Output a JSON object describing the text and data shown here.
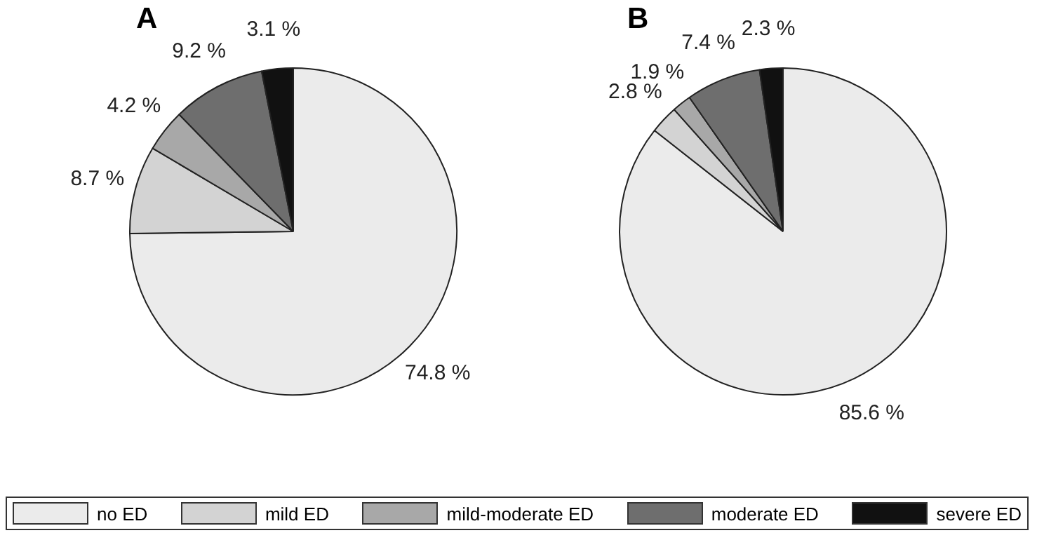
{
  "chart_data": [
    {
      "type": "pie",
      "title": "A",
      "categories": [
        "no ED",
        "mild ED",
        "mild-moderate ED",
        "moderate ED",
        "severe ED"
      ],
      "values": [
        74.8,
        8.7,
        4.2,
        9.2,
        3.1
      ],
      "value_labels": [
        "74.8 %",
        "8.7 %",
        "4.2 %",
        "9.2 %",
        "3.1 %"
      ],
      "colors": [
        "#ebebeb",
        "#d3d3d3",
        "#a8a8a8",
        "#6e6e6e",
        "#111111"
      ],
      "legend": "bottom"
    },
    {
      "type": "pie",
      "title": "B",
      "categories": [
        null,
        null,
        null,
        null,
        null
      ],
      "values": [
        85.6,
        2.8,
        1.9,
        7.4,
        2.3
      ],
      "value_labels": [
        "85.6 %",
        "2.8 %",
        "1.9 %",
        "7.4 %",
        "2.3 %"
      ],
      "colors": [
        "#ebebeb",
        "#d3d3d3",
        "#a8a8a8",
        "#6e6e6e",
        "#111111"
      ]
    }
  ]
}
